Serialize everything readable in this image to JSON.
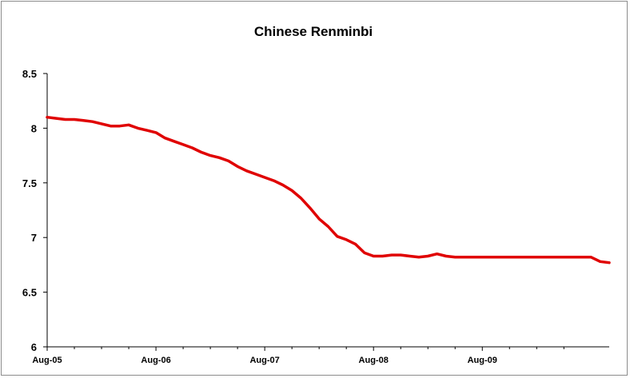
{
  "chart_data": {
    "type": "line",
    "title": "Chinese Renminbi",
    "xlabel": "",
    "ylabel": "",
    "ylim": [
      6,
      8.5
    ],
    "yticks": [
      "6",
      "6.5",
      "7",
      "7.5",
      "8",
      "8.5"
    ],
    "xticks": [
      "Aug-05",
      "Aug-06",
      "Aug-07",
      "Aug-08",
      "Aug-09"
    ],
    "grid": false,
    "legend": "none",
    "series": [
      {
        "color": "#e00000",
        "x": [
          "2005-08",
          "2005-09",
          "2005-10",
          "2005-11",
          "2005-12",
          "2006-01",
          "2006-02",
          "2006-03",
          "2006-04",
          "2006-05",
          "2006-06",
          "2006-07",
          "2006-08",
          "2006-09",
          "2006-10",
          "2006-11",
          "2006-12",
          "2007-01",
          "2007-02",
          "2007-03",
          "2007-04",
          "2007-05",
          "2007-06",
          "2007-07",
          "2007-08",
          "2007-09",
          "2007-10",
          "2007-11",
          "2007-12",
          "2008-01",
          "2008-02",
          "2008-03",
          "2008-04",
          "2008-05",
          "2008-06",
          "2008-07",
          "2008-08",
          "2008-09",
          "2008-10",
          "2008-11",
          "2008-12",
          "2009-01",
          "2009-02",
          "2009-03",
          "2009-04",
          "2009-05",
          "2009-06",
          "2009-07",
          "2009-08",
          "2009-09",
          "2009-10",
          "2009-11",
          "2009-12",
          "2010-01",
          "2010-02",
          "2010-03",
          "2010-04",
          "2010-05",
          "2010-06",
          "2010-07",
          "2010-08",
          "2010-09",
          "2010-10"
        ],
        "y": [
          8.1,
          8.09,
          8.08,
          8.08,
          8.07,
          8.06,
          8.04,
          8.02,
          8.02,
          8.03,
          8.0,
          7.98,
          7.96,
          7.91,
          7.88,
          7.85,
          7.82,
          7.78,
          7.75,
          7.73,
          7.7,
          7.65,
          7.61,
          7.58,
          7.55,
          7.52,
          7.48,
          7.43,
          7.36,
          7.27,
          7.17,
          7.1,
          7.01,
          6.98,
          6.94,
          6.86,
          6.83,
          6.83,
          6.84,
          6.84,
          6.83,
          6.82,
          6.83,
          6.85,
          6.83,
          6.82,
          6.82,
          6.82,
          6.82,
          6.82,
          6.82,
          6.82,
          6.82,
          6.82,
          6.82,
          6.82,
          6.82,
          6.82,
          6.82,
          6.82,
          6.82,
          6.78,
          6.77
        ]
      }
    ]
  }
}
